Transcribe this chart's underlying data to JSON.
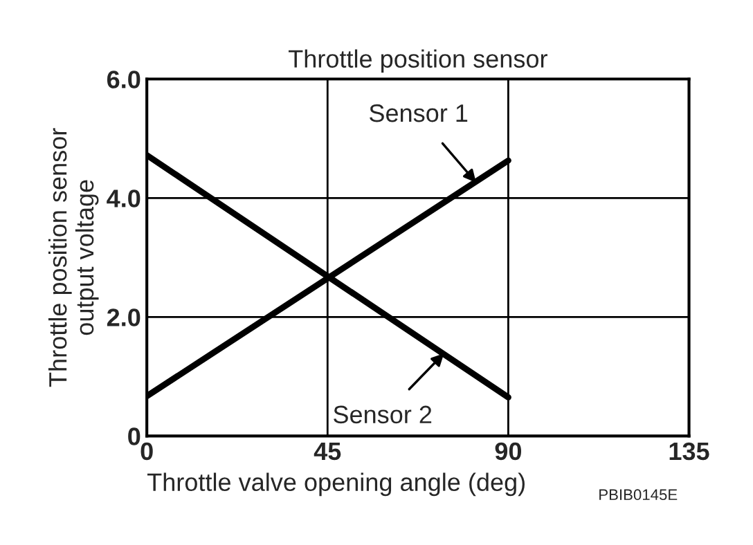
{
  "chart_data": {
    "type": "line",
    "title": "Throttle position sensor",
    "xlabel": "Throttle valve opening angle (deg)",
    "ylabel": "Throttle position sensor\noutput voltage",
    "x": [
      0,
      90
    ],
    "series": [
      {
        "color": "#000000",
        "values": [
          0.67,
          4.63
        ]
      },
      {
        "color": "#000000",
        "values": [
          4.72,
          0.65
        ]
      }
    ],
    "xlim": [
      0,
      135
    ],
    "xticks": [
      0,
      45,
      90,
      135
    ],
    "ylim": [
      0,
      6.0
    ],
    "yticks": [
      0,
      {
        "value": 2,
        "label": "2.0"
      },
      {
        "value": 4,
        "label": "4.0"
      },
      {
        "value": 6,
        "label": "6.0"
      }
    ],
    "grid": true,
    "marker": "none",
    "line_style": "solid",
    "annotations": [
      {
        "text": "Sensor 1",
        "x": 82,
        "y": 4.26
      },
      {
        "text": "Sensor 2",
        "x": 74,
        "y": 1.39
      },
      "PBIB0145E"
    ]
  }
}
